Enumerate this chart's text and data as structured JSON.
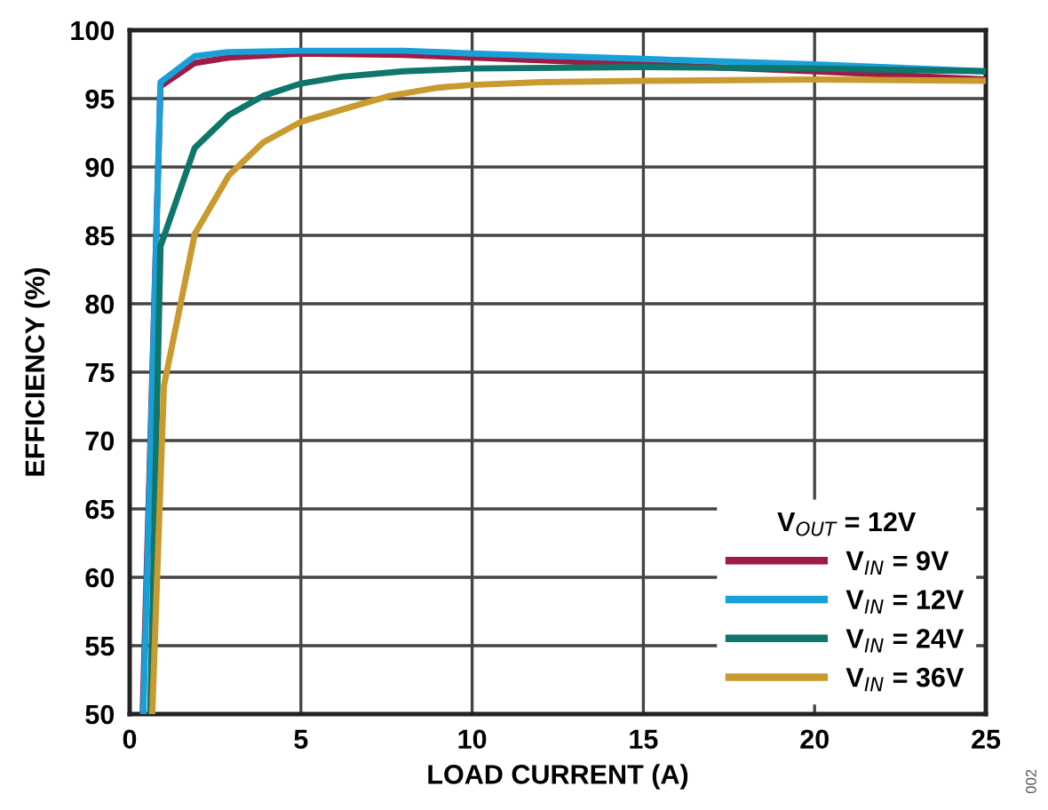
{
  "chart_data": {
    "type": "line",
    "xlabel": "LOAD CURRENT (A)",
    "ylabel": "EFFICIENCY (%)",
    "legend_title": "V$_{OUT}$ = 12V",
    "xlim": [
      0,
      25
    ],
    "xticks": [
      0,
      5,
      10,
      15,
      20,
      25
    ],
    "ylim": [
      50,
      100
    ],
    "yticks": [
      50,
      55,
      60,
      65,
      70,
      75,
      80,
      85,
      90,
      95,
      100
    ],
    "grid": true,
    "legend": "bottom right",
    "marker": "none",
    "line_style": "solid",
    "annotations": [
      "002"
    ],
    "series": [
      {
        "name": "V$_{IN}$ = 9V",
        "color": "#9e1b45",
        "x": [
          0.38,
          0.9,
          1.9,
          2.9,
          5,
          8,
          10,
          15,
          20,
          25
        ],
        "values": [
          50,
          95.9,
          97.6,
          98.0,
          98.3,
          98.2,
          98.0,
          97.5,
          97.0,
          96.4
        ]
      },
      {
        "name": "V$_{IN}$ = 12V",
        "color": "#1aa0d8",
        "x": [
          0.4,
          0.9,
          1.9,
          2.9,
          5,
          8,
          10,
          15,
          20,
          25
        ],
        "values": [
          50,
          96.2,
          98.1,
          98.4,
          98.5,
          98.5,
          98.3,
          97.9,
          97.5,
          97.0
        ]
      },
      {
        "name": "V$_{IN}$ = 24V",
        "color": "#0e766a",
        "x": [
          0.6,
          0.9,
          1.9,
          2.9,
          3.9,
          5,
          6.2,
          8,
          10,
          15,
          20,
          25
        ],
        "values": [
          50,
          84.2,
          91.4,
          93.8,
          95.2,
          96.1,
          96.6,
          97.0,
          97.2,
          97.3,
          97.2,
          97.0
        ]
      },
      {
        "name": "V$_{IN}$ = 36V",
        "color": "#c99a2e",
        "x": [
          0.66,
          1.0,
          1.9,
          2.9,
          3.9,
          5,
          6.2,
          7.6,
          9,
          10,
          12,
          15,
          20,
          25
        ],
        "values": [
          50,
          74.0,
          85.1,
          89.4,
          91.8,
          93.3,
          94.2,
          95.2,
          95.8,
          96.0,
          96.2,
          96.3,
          96.4,
          96.3
        ]
      }
    ]
  }
}
